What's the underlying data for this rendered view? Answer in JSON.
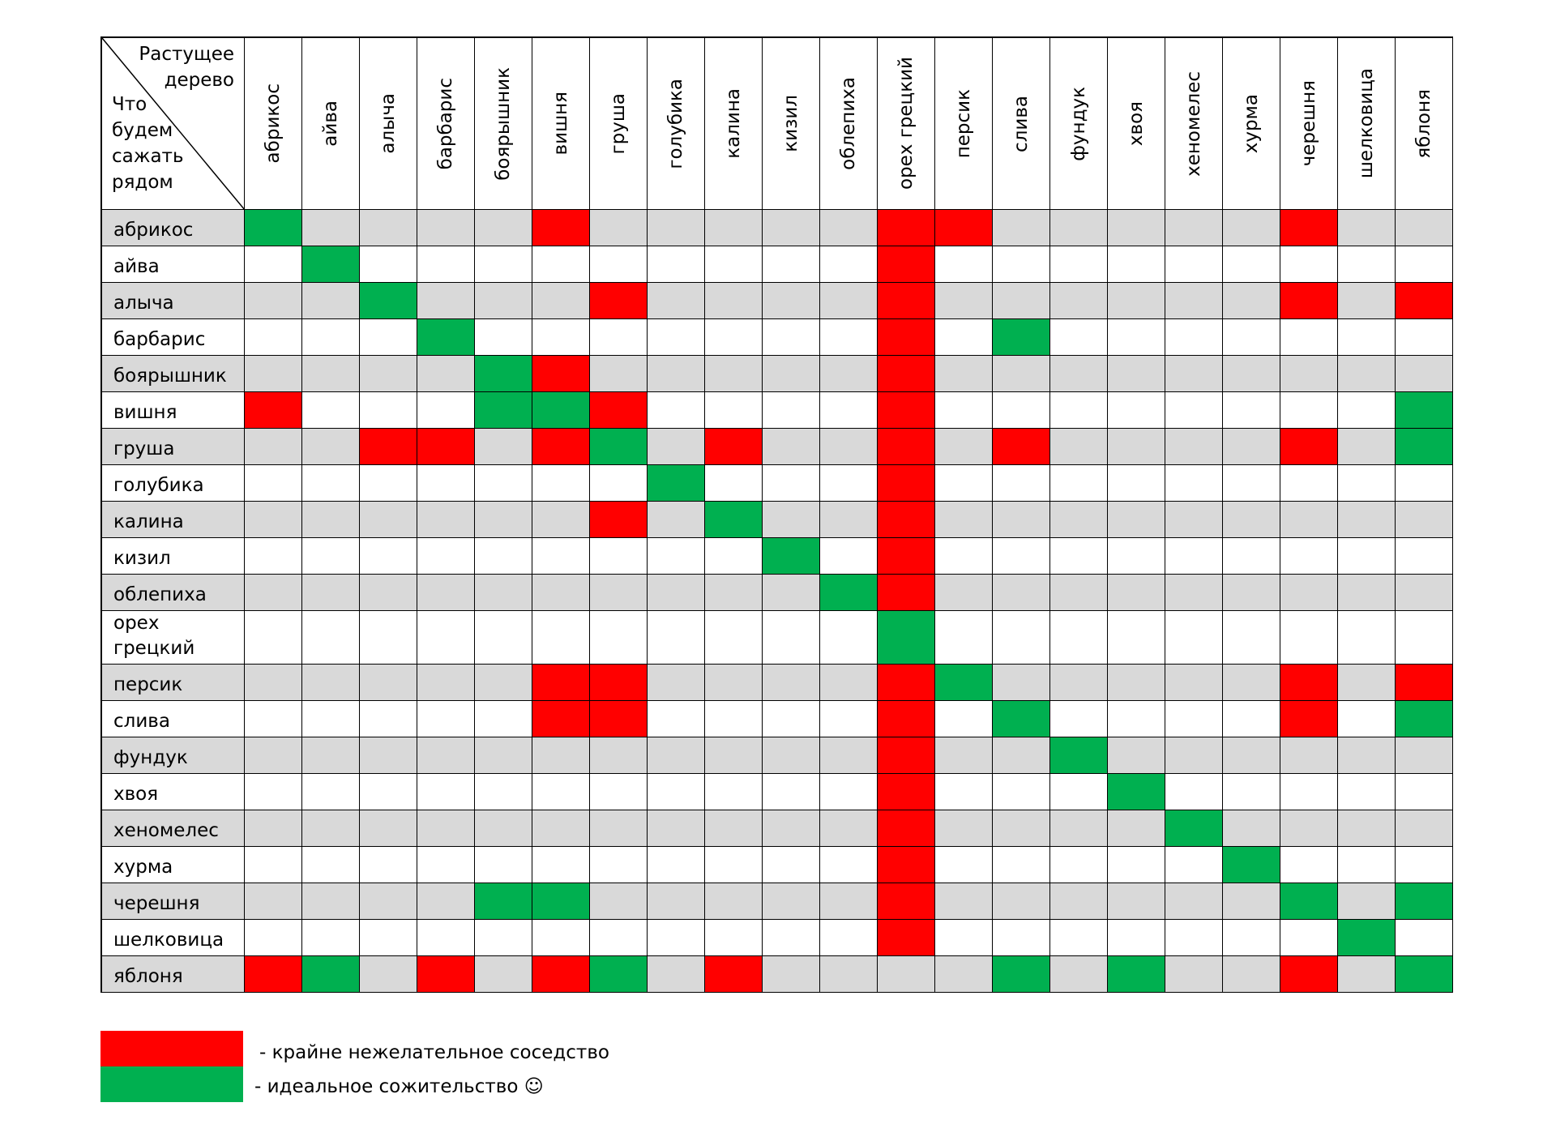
{
  "corner": {
    "top_label": "Растущее дерево",
    "left_label": "Что будем сажать рядом"
  },
  "columns": [
    "абрикос",
    "айва",
    "алыча",
    "барбарис",
    "боярышник",
    "вишня",
    "груша",
    "голубика",
    "калина",
    "кизил",
    "облепиха",
    "орех грецкий",
    "персик",
    "слива",
    "фундук",
    "хвоя",
    "хеномелес",
    "хурма",
    "черешня",
    "шелковица",
    "яблоня"
  ],
  "rows": [
    {
      "label": "абрикос",
      "cells": "G....R.....RR.....R.."
    },
    {
      "label": "айва",
      "cells": ".G.........R........."
    },
    {
      "label": "алыча",
      "cells": "..G...R....R......R.R"
    },
    {
      "label": "барбарис",
      "cells": "...G.......R.G......."
    },
    {
      "label": "боярышник",
      "cells": "....GR.....R........."
    },
    {
      "label": "вишня",
      "cells": "R...GGR....R........G"
    },
    {
      "label": "груша",
      "cells": "..RR.RG.R..R.R....R.G"
    },
    {
      "label": "голубика",
      "cells": ".......G...R........."
    },
    {
      "label": "калина",
      "cells": "......R.G..R........."
    },
    {
      "label": "кизил",
      "cells": ".........G.R........."
    },
    {
      "label": "облепиха",
      "cells": "..........GR........."
    },
    {
      "label": "орех грецкий",
      "cells": "...........G........."
    },
    {
      "label": "персик",
      "cells": ".....RR....RG.....R.R"
    },
    {
      "label": "слива",
      "cells": ".....RR....R.G....R.G"
    },
    {
      "label": "фундук",
      "cells": "...........R..G......"
    },
    {
      "label": "хвоя",
      "cells": "...........R...G....."
    },
    {
      "label": "хеномелес",
      "cells": "...........R....G...."
    },
    {
      "label": "хурма",
      "cells": "...........R.....G..."
    },
    {
      "label": "черешня",
      "cells": "....GG.....R......G.G"
    },
    {
      "label": "шелковица",
      "cells": "...........R.......G."
    },
    {
      "label": "яблоня",
      "cells": "RG.R.RG.R....G.G..R.G"
    }
  ],
  "legend": {
    "red_text": "- крайне нежелательное соседство",
    "green_text": "- идеальное сожительство ☺"
  },
  "colors": {
    "bad": "#ff0000",
    "good": "#00b050",
    "shaded_row": "#d9d9d9",
    "plain_row": "#ffffff"
  }
}
